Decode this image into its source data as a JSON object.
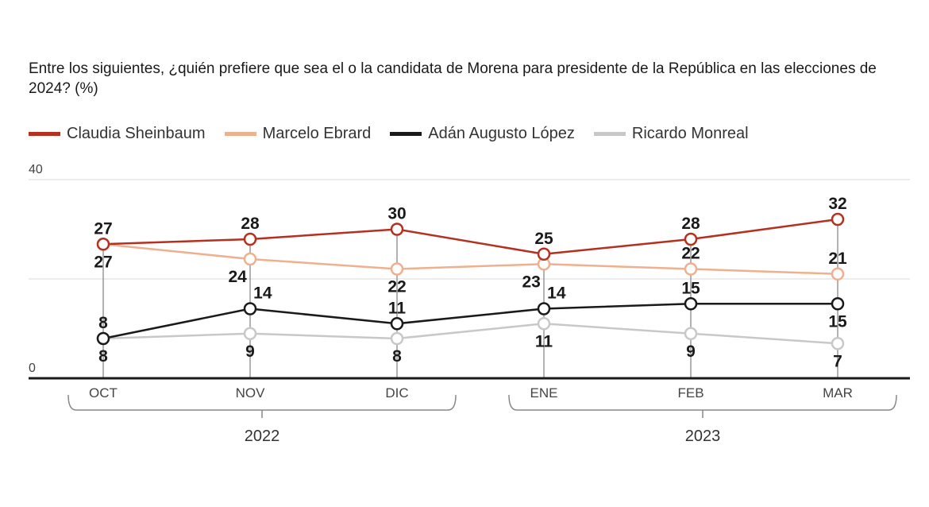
{
  "chart_data": {
    "type": "line",
    "title": "Entre los siguientes, ¿quién prefiere que sea el o la candidata de Morena para presidente de la República en las elecciones de 2024? (%)",
    "categories": [
      "OCT",
      "NOV",
      "DIC",
      "ENE",
      "FEB",
      "MAR"
    ],
    "year_groups": [
      {
        "label": "2022",
        "from": 0,
        "to": 2
      },
      {
        "label": "2023",
        "from": 3,
        "to": 5
      }
    ],
    "ylim": [
      0,
      40
    ],
    "yticks": [
      0,
      20,
      40
    ],
    "ytick_labels": [
      "0",
      "",
      "40"
    ],
    "grid": true,
    "legend_position": "top-left",
    "series": [
      {
        "name": "Claudia Sheinbaum",
        "color": "#b5301f",
        "values": [
          27,
          28,
          30,
          25,
          28,
          32
        ],
        "label_side": [
          "above",
          "above",
          "above",
          "above",
          "above",
          "above"
        ]
      },
      {
        "name": "Marcelo Ebrard",
        "color": "#eeb08e",
        "values": [
          27,
          24,
          22,
          23,
          22,
          21
        ],
        "label_side": [
          "below",
          "below",
          "below",
          "below",
          "above",
          "above"
        ]
      },
      {
        "name": "Adán Augusto López",
        "color": "#1a1a1a",
        "values": [
          8,
          14,
          11,
          14,
          15,
          15
        ],
        "label_side": [
          "above",
          "above",
          "above",
          "above",
          "above",
          "below"
        ]
      },
      {
        "name": "Ricardo Monreal",
        "color": "#c8c8c8",
        "values": [
          8,
          9,
          8,
          11,
          9,
          7
        ],
        "label_side": [
          "below",
          "below",
          "below",
          "below",
          "below",
          "below"
        ]
      }
    ]
  }
}
